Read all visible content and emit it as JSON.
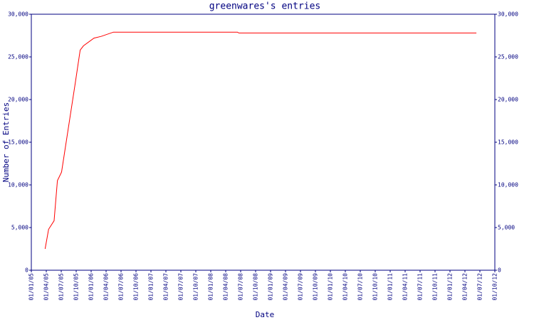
{
  "chart_data": {
    "type": "line",
    "title": "greenwares's entries",
    "y_label": "Number of Entries",
    "x_label": "Date",
    "x": [
      "24/03/05",
      "15/04/05",
      "18/05/05",
      "08/06/05",
      "03/07/05",
      "26/09/05",
      "25/10/05",
      "15/11/05",
      "18/01/06",
      "01/03/06",
      "15/05/06",
      "12/06/08",
      "20/06/08",
      "10/06/12"
    ],
    "series": [
      {
        "name": "entries",
        "color": "#ff0000",
        "values": [
          2500,
          4800,
          5800,
          10500,
          11500,
          22000,
          25800,
          26300,
          27200,
          27400,
          27900,
          27900,
          27800,
          27800
        ]
      }
    ],
    "xlim": [
      "01/01/05",
      "01/10/12"
    ],
    "xticks": [
      "01/01/05",
      "01/04/05",
      "01/07/05",
      "01/10/05",
      "01/01/06",
      "01/04/06",
      "01/07/06",
      "01/10/06",
      "01/01/07",
      "01/04/07",
      "01/07/07",
      "01/10/07",
      "01/01/08",
      "01/04/08",
      "01/07/08",
      "01/10/08",
      "01/01/09",
      "01/04/09",
      "01/07/09",
      "01/10/09",
      "01/01/10",
      "01/04/10",
      "01/07/10",
      "01/10/10",
      "01/01/11",
      "01/04/11",
      "01/07/11",
      "01/10/11",
      "01/01/12",
      "01/04/12",
      "01/07/12",
      "01/10/12"
    ],
    "ylim": [
      0,
      30000
    ],
    "yticks": [
      0,
      {
        "value": 5000,
        "label": "5,000"
      },
      {
        "value": 10000,
        "label": "10,000"
      },
      {
        "value": 15000,
        "label": "15,000"
      },
      {
        "value": 20000,
        "label": "20,000"
      },
      {
        "value": 25000,
        "label": "25,000"
      },
      {
        "value": 30000,
        "label": "30,000"
      }
    ],
    "y2lim": [
      0,
      30000
    ],
    "y2ticks": [
      0,
      {
        "value": 5000,
        "label": "5,000"
      },
      {
        "value": 10000,
        "label": "10,000"
      },
      {
        "value": 15000,
        "label": "15,000"
      },
      {
        "value": 20000,
        "label": "20,000"
      },
      {
        "value": 25000,
        "label": "25,000"
      },
      {
        "value": 30000,
        "label": "30,000"
      }
    ]
  }
}
